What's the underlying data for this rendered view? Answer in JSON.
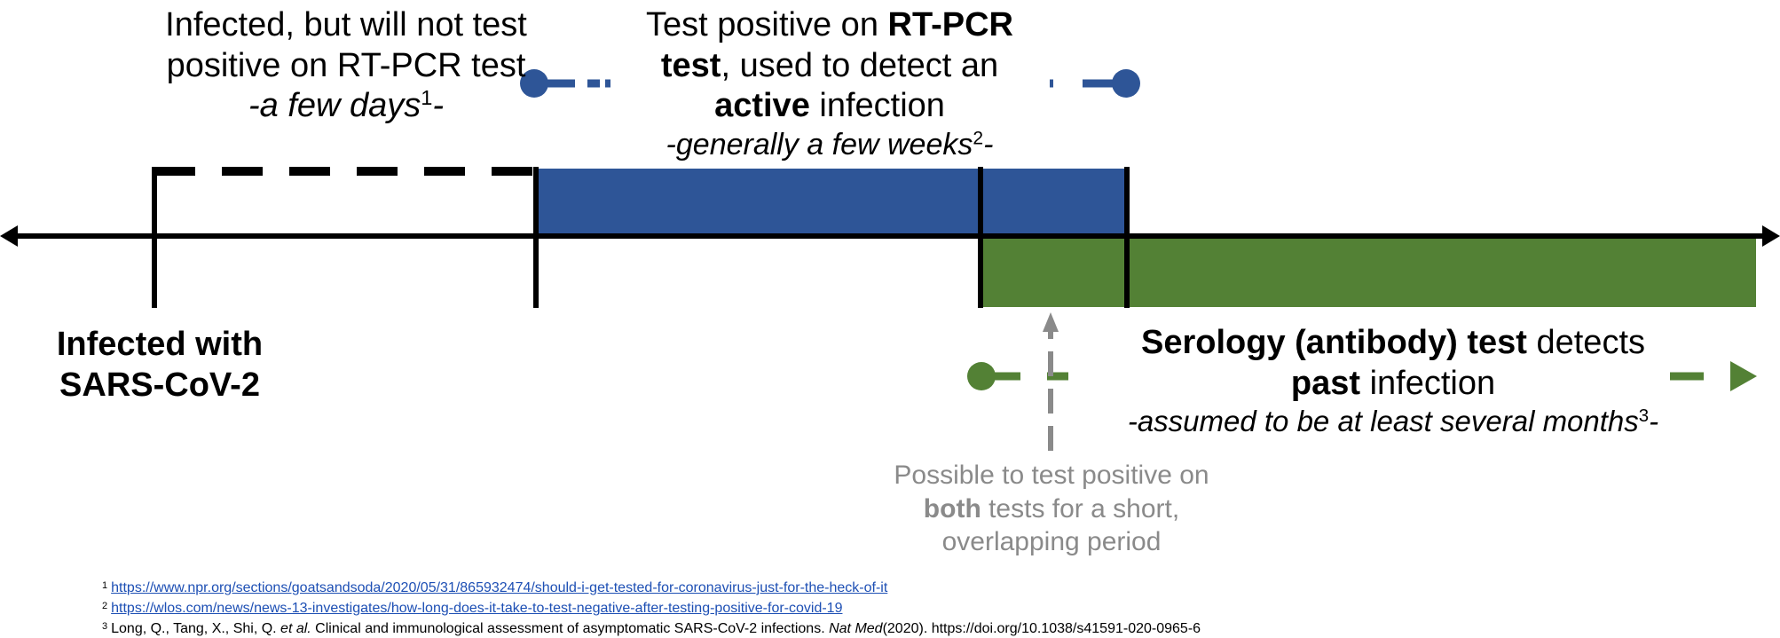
{
  "colors": {
    "axis": "#000000",
    "rtpcr": "#2e5597",
    "serology": "#538135",
    "overlap": "#8a8a8a"
  },
  "labels": {
    "infected_not_positive": {
      "text": "Infected, but will not test positive on RT-PCR test",
      "duration": "-a few days",
      "footnote": "1"
    },
    "rtpcr": {
      "line1_pre": "Test positive on ",
      "line1_bold": "RT-PCR",
      "line2_bold": "test",
      "line2_rest": ", used to detect an",
      "line3_bold": "active",
      "line3_rest": " infection",
      "duration": "-generally a few weeks",
      "footnote": "2"
    },
    "infected_with": "Infected with SARS-CoV-2",
    "serology": {
      "line1_bold": "Serology (antibody) test",
      "line1_rest": " detects",
      "line2_bold": "past",
      "line2_rest": " infection",
      "duration": "-assumed to be at least several months",
      "footnote": "3"
    },
    "overlap": {
      "line1": "Possible to test positive on",
      "line2_bold": "both",
      "line2_rest": " tests for a short,",
      "line3": "overlapping period"
    },
    "trailing_dash": "-"
  },
  "references": [
    {
      "num": "1",
      "text": "https://www.npr.org/sections/goatsandsoda/2020/05/31/865932474/should-i-get-tested-for-coronavirus-just-for-the-heck-of-it"
    },
    {
      "num": "2",
      "text": "https://wlos.com/news/news-13-investigates/how-long-does-it-take-to-test-negative-after-testing-positive-for-covid-19"
    },
    {
      "num": "3",
      "authors": "Long, Q., Tang, X., Shi, Q. ",
      "etal": "et al.",
      "title": " Clinical and immunological assessment of asymptomatic SARS-CoV-2 infections. ",
      "journal": "Nat Med",
      "rest": "(2020). https://doi.org/10.1038/s41591-020-0965-6"
    }
  ]
}
